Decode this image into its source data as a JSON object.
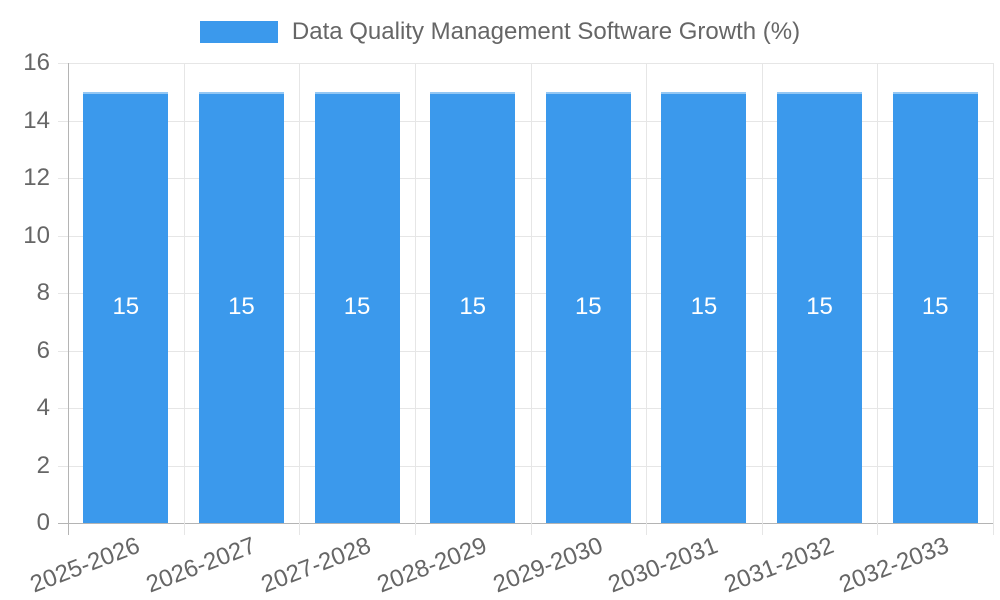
{
  "chart_data": {
    "type": "bar",
    "title": "Data Quality Management Software Growth (%)",
    "categories": [
      "2025-2026",
      "2026-2027",
      "2027-2028",
      "2028-2029",
      "2029-2030",
      "2030-2031",
      "2031-2032",
      "2032-2033"
    ],
    "values": [
      15,
      15,
      15,
      15,
      15,
      15,
      15,
      15
    ],
    "bar_value_labels": [
      "15",
      "15",
      "15",
      "15",
      "15",
      "15",
      "15",
      "15"
    ],
    "xlabel": "",
    "ylabel": "",
    "ylim": [
      0,
      16
    ],
    "yticks": [
      0,
      2,
      4,
      6,
      8,
      10,
      12,
      14,
      16
    ],
    "grid": true,
    "legend_position": "top",
    "colors": {
      "bar_fill": "#3B99EC",
      "bar_value_text": "#ffffff",
      "axis_text": "#666666",
      "grid_line": "#e6e6e6",
      "axis_line": "#b4b4b4"
    }
  }
}
